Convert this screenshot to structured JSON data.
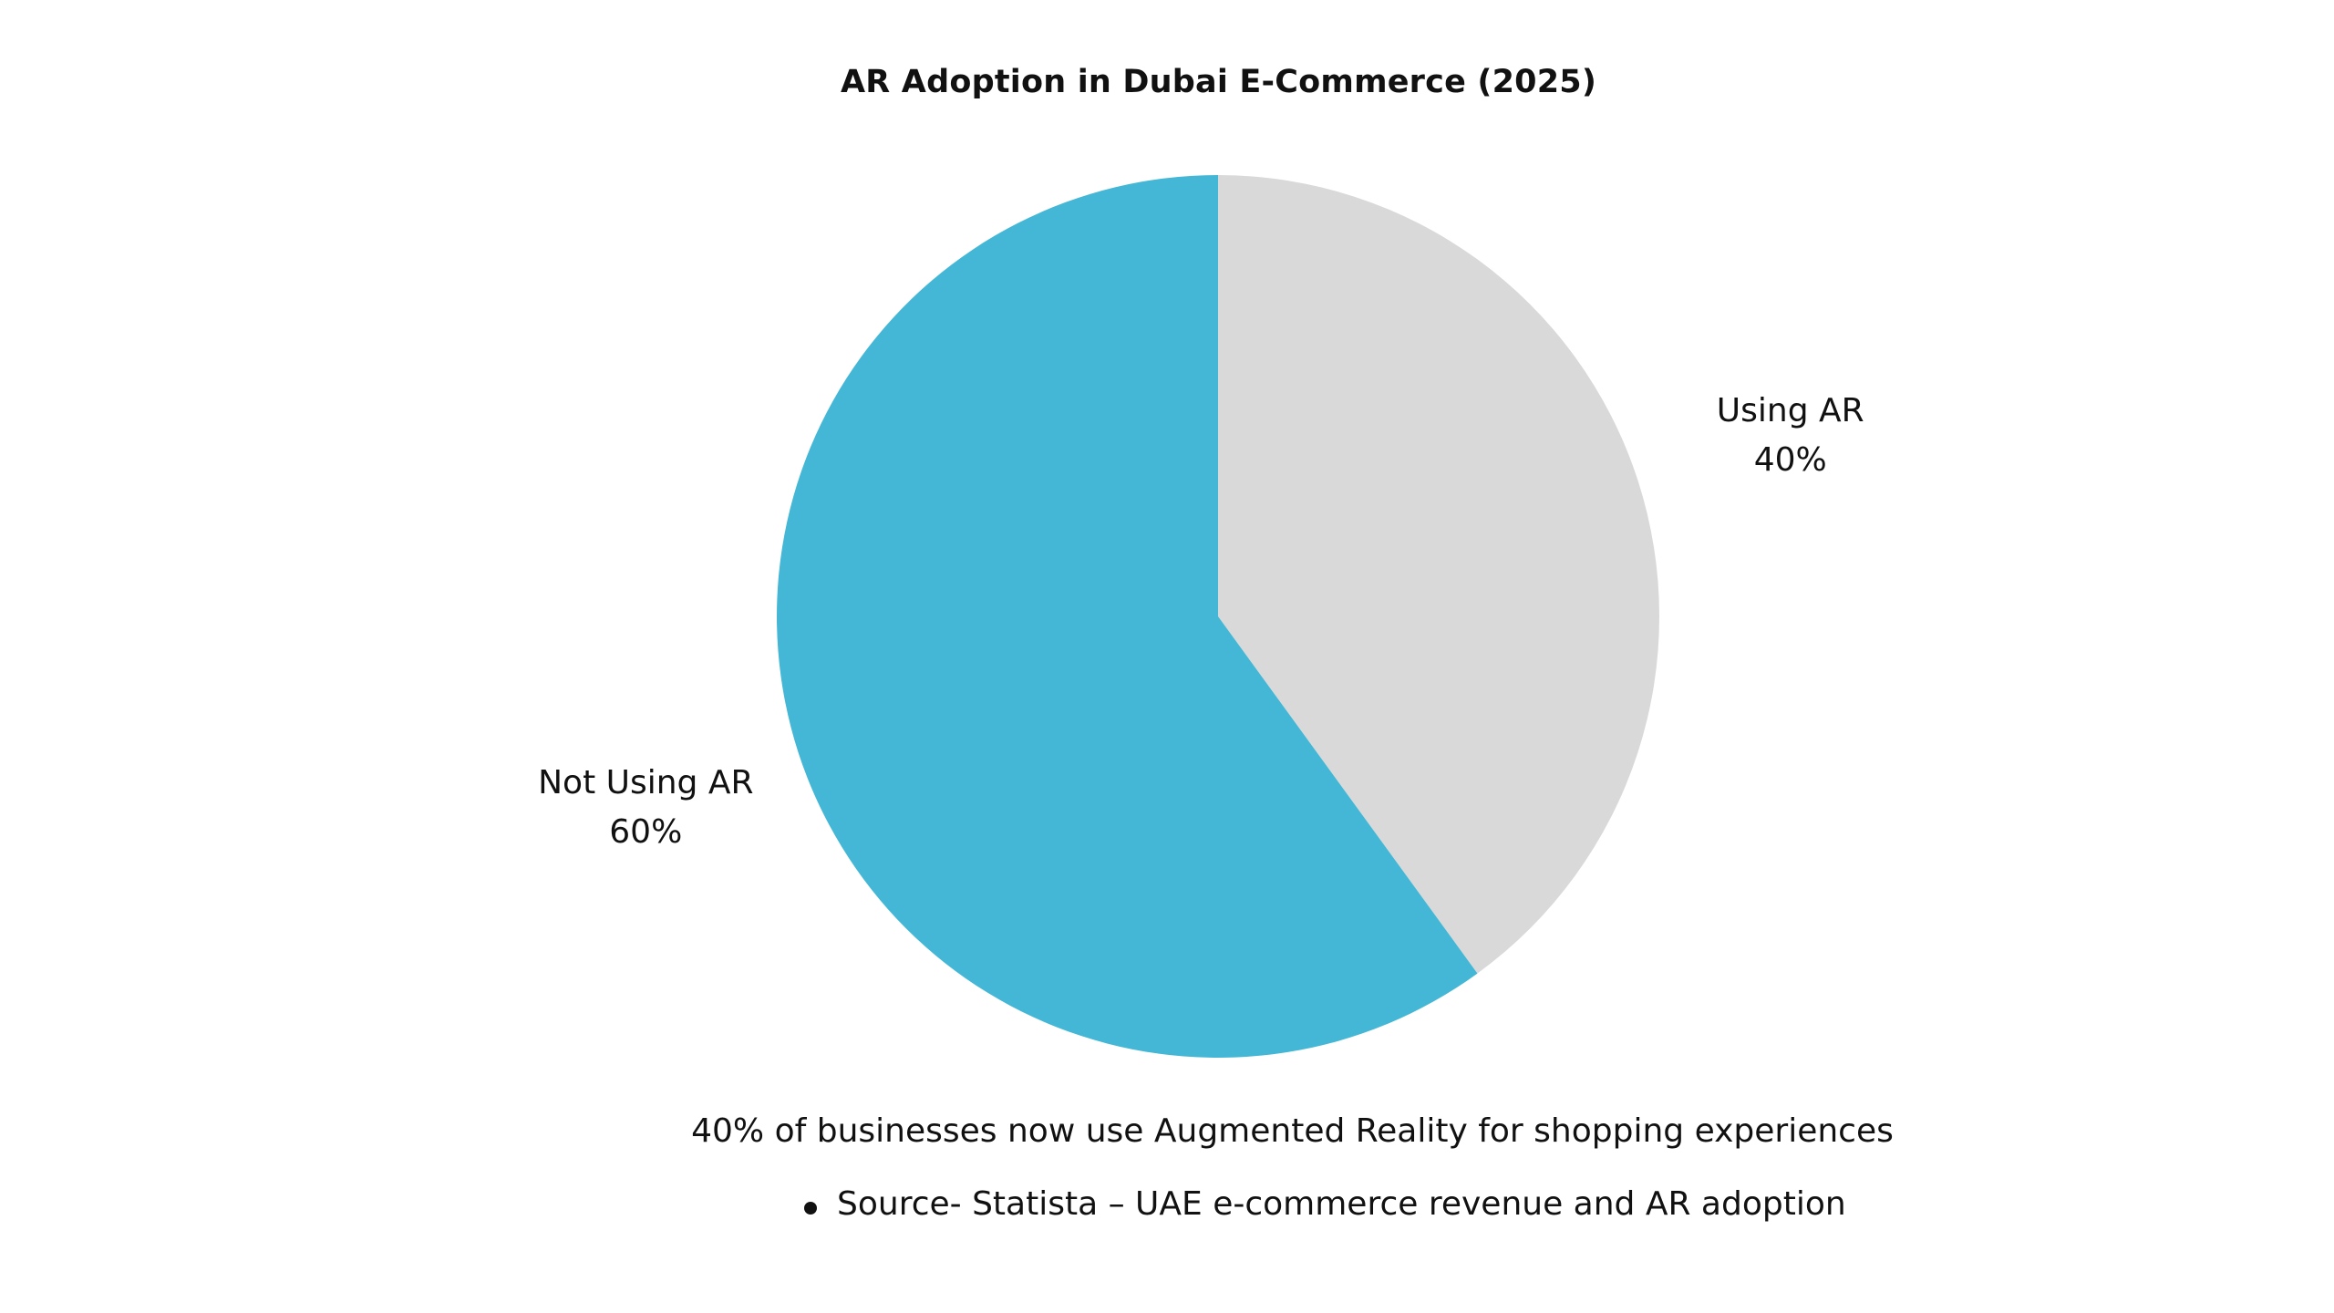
{
  "chart_data": {
    "type": "pie",
    "title": "AR Adoption in Dubai E-Commerce (2025)",
    "categories": [
      "Using AR",
      "Not Using AR"
    ],
    "values": [
      40,
      60
    ],
    "labels": [
      "40%",
      "60%"
    ],
    "colors": [
      "#d9d9d9",
      "#43b7d5"
    ],
    "start": "12 o'clock",
    "direction": "clockwise"
  },
  "caption": "40% of businesses now use Augmented Reality for shopping experiences",
  "source": "Source- Statista – UAE e-commerce revenue and AR adoption"
}
